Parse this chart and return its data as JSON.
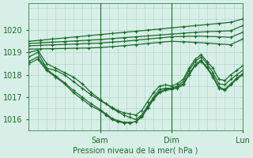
{
  "title": "",
  "xlabel": "Pression niveau de la mer( hPa )",
  "bg_color": "#d8efe8",
  "grid_color": "#b0d8cc",
  "line_color": "#1a6b2a",
  "ylim": [
    1015.5,
    1021.2
  ],
  "xlim": [
    0,
    72
  ],
  "day_ticks": [
    24,
    48,
    72
  ],
  "day_labels": [
    "Sam",
    "Dim",
    "Lun"
  ],
  "yticks": [
    1016,
    1017,
    1018,
    1019,
    1020
  ],
  "marker": "+",
  "markersize": 3,
  "linewidth": 0.9,
  "series": [
    {
      "x": [
        0,
        4,
        8,
        12,
        16,
        20,
        24,
        28,
        32,
        36,
        40,
        44,
        48,
        52,
        56,
        60,
        64,
        68,
        72
      ],
      "y": [
        1019.5,
        1019.55,
        1019.6,
        1019.65,
        1019.7,
        1019.75,
        1019.8,
        1019.85,
        1019.9,
        1019.95,
        1020.0,
        1020.05,
        1020.1,
        1020.15,
        1020.2,
        1020.25,
        1020.3,
        1020.35,
        1020.5
      ]
    },
    {
      "x": [
        0,
        4,
        8,
        12,
        16,
        20,
        24,
        28,
        32,
        36,
        40,
        44,
        48,
        52,
        56,
        60,
        64,
        68,
        72
      ],
      "y": [
        1019.4,
        1019.43,
        1019.46,
        1019.49,
        1019.52,
        1019.55,
        1019.58,
        1019.62,
        1019.66,
        1019.7,
        1019.74,
        1019.78,
        1019.82,
        1019.86,
        1019.9,
        1019.93,
        1019.95,
        1019.97,
        1020.2
      ]
    },
    {
      "x": [
        0,
        4,
        8,
        12,
        16,
        20,
        24,
        28,
        32,
        36,
        40,
        44,
        48,
        52,
        56,
        60,
        64,
        68,
        72
      ],
      "y": [
        1019.3,
        1019.32,
        1019.34,
        1019.36,
        1019.38,
        1019.4,
        1019.42,
        1019.46,
        1019.5,
        1019.55,
        1019.6,
        1019.65,
        1019.7,
        1019.72,
        1019.73,
        1019.72,
        1019.7,
        1019.68,
        1019.9
      ]
    },
    {
      "x": [
        0,
        4,
        8,
        12,
        16,
        20,
        24,
        28,
        32,
        36,
        40,
        44,
        48,
        52,
        56,
        60,
        64,
        68,
        72
      ],
      "y": [
        1019.15,
        1019.16,
        1019.17,
        1019.18,
        1019.19,
        1019.2,
        1019.22,
        1019.26,
        1019.3,
        1019.35,
        1019.4,
        1019.45,
        1019.5,
        1019.48,
        1019.45,
        1019.42,
        1019.38,
        1019.35,
        1019.6
      ]
    },
    {
      "x": [
        0,
        3,
        6,
        9,
        12,
        15,
        18,
        21,
        24,
        26,
        28,
        30,
        32,
        34,
        36,
        38,
        40,
        42,
        44,
        46,
        48,
        50,
        52,
        54,
        56,
        58,
        60,
        62,
        64,
        66,
        68,
        70,
        72
      ],
      "y": [
        1018.8,
        1019.0,
        1018.3,
        1018.2,
        1018.0,
        1017.7,
        1017.4,
        1017.1,
        1016.85,
        1016.7,
        1016.55,
        1016.4,
        1016.3,
        1016.25,
        1016.2,
        1016.4,
        1016.8,
        1017.2,
        1017.5,
        1017.55,
        1017.5,
        1017.6,
        1017.8,
        1018.3,
        1018.7,
        1018.9,
        1018.6,
        1018.3,
        1017.8,
        1017.75,
        1018.0,
        1018.2,
        1018.4
      ]
    },
    {
      "x": [
        0,
        3,
        6,
        9,
        12,
        15,
        18,
        21,
        24,
        26,
        28,
        30,
        32,
        34,
        36,
        38,
        40,
        42,
        44,
        46,
        48,
        50,
        52,
        54,
        56,
        58,
        60,
        62,
        64,
        66,
        68,
        70,
        72
      ],
      "y": [
        1019.0,
        1019.1,
        1018.5,
        1018.3,
        1018.1,
        1017.9,
        1017.6,
        1017.2,
        1016.9,
        1016.7,
        1016.5,
        1016.35,
        1016.2,
        1016.1,
        1016.0,
        1016.2,
        1016.6,
        1017.0,
        1017.35,
        1017.4,
        1017.4,
        1017.5,
        1017.7,
        1018.2,
        1018.6,
        1018.8,
        1018.5,
        1018.1,
        1017.6,
        1017.55,
        1017.8,
        1018.0,
        1018.2
      ]
    },
    {
      "x": [
        0,
        3,
        6,
        9,
        12,
        15,
        18,
        21,
        24,
        26,
        28,
        30,
        32,
        34,
        36,
        38,
        40,
        42,
        44,
        46,
        48,
        50,
        52,
        54,
        56,
        58,
        60,
        62,
        64,
        66,
        68,
        70,
        72
      ],
      "y": [
        1018.5,
        1018.7,
        1018.2,
        1017.9,
        1017.6,
        1017.2,
        1016.9,
        1016.6,
        1016.4,
        1016.2,
        1016.0,
        1015.9,
        1015.85,
        1015.85,
        1015.9,
        1016.1,
        1016.5,
        1016.9,
        1017.2,
        1017.3,
        1017.35,
        1017.4,
        1017.55,
        1018.0,
        1018.4,
        1018.6,
        1018.3,
        1017.9,
        1017.4,
        1017.3,
        1017.55,
        1017.8,
        1018.0
      ]
    },
    {
      "x": [
        0,
        3,
        6,
        9,
        12,
        15,
        18,
        21,
        24,
        26,
        28,
        30,
        32,
        34,
        36,
        38,
        40,
        42,
        44,
        46,
        48,
        50,
        52,
        54,
        56,
        58,
        60,
        62,
        64,
        66,
        68,
        70,
        72
      ],
      "y": [
        1018.6,
        1018.8,
        1018.25,
        1017.95,
        1017.65,
        1017.3,
        1017.0,
        1016.7,
        1016.45,
        1016.25,
        1016.05,
        1015.95,
        1015.88,
        1015.87,
        1015.9,
        1016.15,
        1016.55,
        1016.95,
        1017.25,
        1017.35,
        1017.4,
        1017.45,
        1017.6,
        1018.05,
        1018.45,
        1018.65,
        1018.35,
        1017.95,
        1017.45,
        1017.35,
        1017.6,
        1017.85,
        1018.05
      ]
    }
  ]
}
